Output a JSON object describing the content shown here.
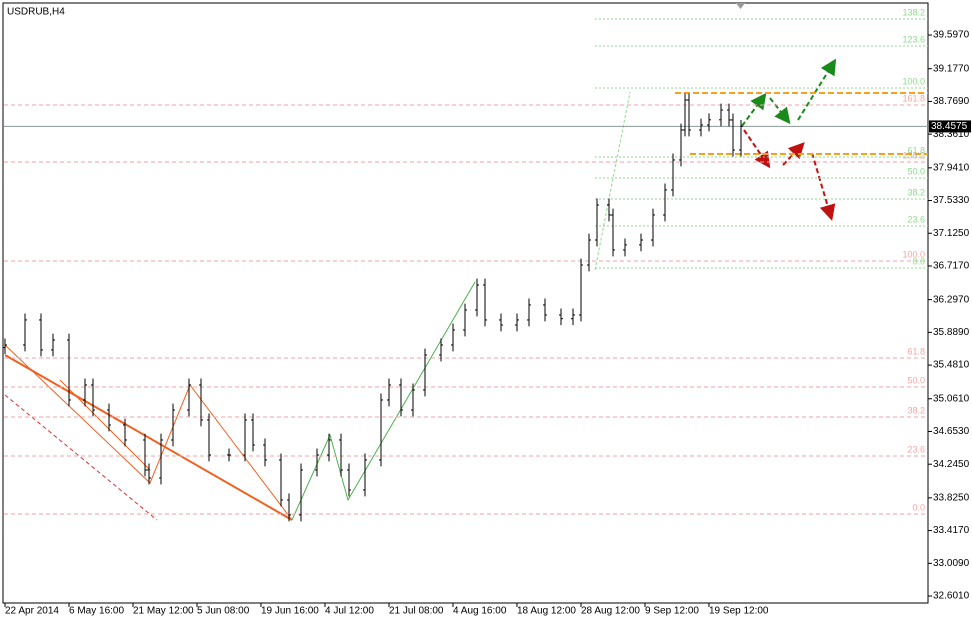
{
  "chart_data": {
    "type": "ohlc",
    "title": "USDRUB,H4",
    "color": "#000000",
    "xlim": [
      -1,
      231
    ],
    "ylim": [
      32.514,
      40.034
    ],
    "xticks": [
      {
        "value": 0,
        "label": "22 Apr 2014"
      },
      {
        "value": 16,
        "label": "6 May 16:00"
      },
      {
        "value": 32,
        "label": "21 May 12:00"
      },
      {
        "value": 48,
        "label": "5 Jun 08:00"
      },
      {
        "value": 64,
        "label": "19 Jun 16:00"
      },
      {
        "value": 80,
        "label": "4 Jul 12:00"
      },
      {
        "value": 96,
        "label": "21 Jul 08:00"
      },
      {
        "value": 112,
        "label": "4 Aug 16:00"
      },
      {
        "value": 128,
        "label": "18 Aug 12:00"
      },
      {
        "value": 144,
        "label": "28 Aug 12:00"
      },
      {
        "value": 160,
        "label": "9 Sep 12:00"
      },
      {
        "value": 176,
        "label": "19 Sep 12:00"
      }
    ],
    "yticks": [
      {
        "value": 39.597,
        "label": "39.5970"
      },
      {
        "value": 39.177,
        "label": "39.1770"
      },
      {
        "value": 38.769,
        "label": "38.7690"
      },
      {
        "value": 38.361,
        "label": "38.3610"
      },
      {
        "value": 37.941,
        "label": "37.9410"
      },
      {
        "value": 37.533,
        "label": "37.5330"
      },
      {
        "value": 37.125,
        "label": "37.1250"
      },
      {
        "value": 36.717,
        "label": "36.7170"
      },
      {
        "value": 36.297,
        "label": "36.2970"
      },
      {
        "value": 35.889,
        "label": "35.8890"
      },
      {
        "value": 35.481,
        "label": "35.4810"
      },
      {
        "value": 35.061,
        "label": "35.0610"
      },
      {
        "value": 34.653,
        "label": "34.6530"
      },
      {
        "value": 34.245,
        "label": "34.2450"
      },
      {
        "value": 33.825,
        "label": "33.8250"
      },
      {
        "value": 33.417,
        "label": "33.4170"
      },
      {
        "value": 33.009,
        "label": "33.0090"
      },
      {
        "value": 32.601,
        "label": "32.6010"
      }
    ],
    "current_price": 38.4575,
    "x": [
      0,
      5,
      9,
      12,
      16,
      20,
      22,
      26,
      30,
      35,
      36,
      39,
      42,
      46,
      49,
      51,
      56,
      60,
      62,
      65,
      69,
      71,
      74,
      78,
      81,
      84,
      86,
      90,
      94,
      96,
      99,
      102,
      105,
      109,
      112,
      115,
      118,
      120,
      124,
      128,
      131,
      135,
      139,
      142,
      144,
      146,
      148,
      151,
      152,
      155,
      159,
      162,
      165,
      167,
      169,
      170,
      171,
      174,
      176,
      179,
      181,
      182,
      184
    ],
    "open": [
      35.7,
      35.732,
      36.044,
      35.67,
      35.794,
      35.046,
      35.233,
      34.921,
      34.734,
      34.547,
      34.173,
      34.073,
      34.547,
      34.921,
      35.233,
      34.797,
      34.36,
      34.36,
      34.797,
      34.485,
      34.298,
      33.799,
      33.612,
      34.173,
      34.36,
      34.547,
      34.173,
      33.924,
      34.298,
      35.046,
      35.233,
      34.921,
      35.171,
      35.607,
      35.732,
      35.919,
      36.168,
      36.48,
      36.044,
      35.981,
      36.044,
      36.231,
      36.106,
      36.06,
      36.106,
      36.729,
      37.041,
      37.478,
      37.353,
      36.917,
      36.98,
      37.041,
      37.353,
      37.665,
      38.039,
      38.413,
      38.787,
      38.413,
      38.475,
      38.54,
      38.662,
      38.538,
      38.163
    ],
    "high": [
      35.812,
      36.124,
      36.124,
      35.874,
      35.874,
      35.313,
      35.313,
      35.001,
      34.814,
      34.627,
      34.253,
      34.627,
      35.001,
      35.313,
      35.313,
      34.877,
      34.44,
      34.877,
      34.877,
      34.565,
      34.378,
      33.879,
      34.253,
      34.44,
      34.627,
      34.627,
      34.253,
      34.378,
      35.126,
      35.313,
      35.313,
      35.251,
      35.687,
      35.812,
      35.999,
      36.248,
      36.56,
      36.56,
      36.124,
      36.124,
      36.311,
      36.311,
      36.186,
      36.186,
      36.809,
      37.121,
      37.558,
      37.558,
      37.433,
      37.06,
      37.121,
      37.433,
      37.745,
      38.119,
      38.493,
      38.867,
      38.867,
      38.555,
      38.62,
      38.742,
      38.742,
      38.618,
      38.538
    ],
    "low": [
      35.62,
      35.652,
      35.59,
      35.59,
      34.966,
      34.966,
      34.841,
      34.654,
      34.467,
      34.093,
      33.993,
      33.993,
      34.467,
      34.841,
      34.717,
      34.28,
      34.28,
      34.28,
      34.405,
      34.218,
      33.719,
      33.532,
      33.532,
      34.093,
      34.28,
      34.093,
      33.844,
      33.844,
      34.218,
      34.966,
      34.841,
      34.841,
      35.091,
      35.527,
      35.652,
      35.839,
      36.088,
      35.964,
      35.901,
      35.901,
      35.964,
      36.026,
      35.98,
      35.98,
      36.026,
      36.649,
      36.961,
      37.273,
      36.837,
      36.837,
      36.9,
      36.961,
      37.273,
      37.585,
      37.959,
      38.333,
      38.333,
      38.333,
      38.395,
      38.46,
      38.458,
      38.083,
      38.083
    ],
    "close": [
      35.732,
      36.044,
      35.67,
      35.794,
      35.046,
      35.233,
      34.921,
      34.734,
      34.547,
      34.173,
      34.073,
      34.547,
      34.921,
      35.233,
      34.797,
      34.36,
      34.36,
      34.797,
      34.485,
      34.298,
      33.799,
      33.612,
      34.173,
      34.36,
      34.547,
      34.173,
      33.924,
      34.298,
      35.046,
      35.233,
      34.921,
      35.171,
      35.607,
      35.732,
      35.919,
      36.168,
      36.48,
      36.044,
      35.981,
      36.044,
      36.231,
      36.106,
      36.06,
      36.106,
      36.729,
      37.041,
      37.478,
      37.353,
      36.917,
      36.98,
      37.041,
      37.353,
      37.665,
      38.039,
      38.413,
      38.787,
      38.413,
      38.475,
      38.54,
      38.662,
      38.538,
      38.163,
      38.458
    ],
    "fib_sets": [
      {
        "color": "#f2a6a6",
        "levels": [
          {
            "label": "161.8",
            "price": 38.725
          },
          {
            "label": "138.2",
            "price": 38.014
          },
          {
            "label": "100.0",
            "price": 36.779
          },
          {
            "label": "61.8",
            "price": 35.57
          },
          {
            "label": "50.0",
            "price": 35.208
          },
          {
            "label": "38.2",
            "price": 34.834
          },
          {
            "label": "23.6",
            "price": 34.348
          },
          {
            "label": "0.0",
            "price": 33.624
          }
        ]
      },
      {
        "color": "#8fd98f",
        "levels": [
          {
            "label": "138.2",
            "price": 39.797
          },
          {
            "label": "123.6",
            "price": 39.46
          },
          {
            "label": "100.0",
            "price": 38.937
          },
          {
            "label": "61.8",
            "price": 38.076
          },
          {
            "label": "50.0",
            "price": 37.814
          },
          {
            "label": "38.2",
            "price": 37.552
          },
          {
            "label": "23.6",
            "price": 37.216
          },
          {
            "label": "0.0",
            "price": 36.692
          }
        ]
      }
    ],
    "levels": {
      "color": "#f5a020",
      "prices": [
        38.874,
        38.114
      ]
    }
  }
}
